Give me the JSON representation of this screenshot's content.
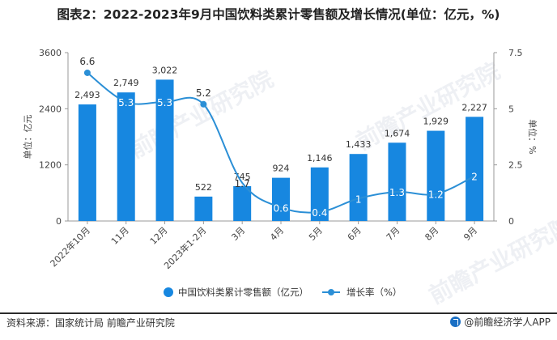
{
  "title": "图表2：2022-2023年9月中国饮料类累计零售额及增长情况(单位：亿元，%)",
  "source": "资料来源：国家统计局 前瞻产业研究院",
  "brand": "@前瞻经济学人APP",
  "watermark": "前瞻产业研究院",
  "colors": {
    "bar": "#1787e0",
    "line": "#2b8fd6",
    "axis": "#999999",
    "text": "#444444"
  },
  "chart_data": {
    "type": "bar+line",
    "categories": [
      "2022年10月",
      "11月",
      "12月",
      "2023年1-2月",
      "3月",
      "4月",
      "5月",
      "6月",
      "7月",
      "8月",
      "9月"
    ],
    "bars": {
      "name": "中国饮料类累计零售额（亿元）",
      "values": [
        2493,
        2749,
        3022,
        522,
        745,
        924,
        1146,
        1433,
        1674,
        1929,
        2227
      ],
      "labels": [
        "2,493",
        "2,749",
        "3,022",
        "522",
        "745",
        "924",
        "1,146",
        "1,433",
        "1,674",
        "1,929",
        "2,227"
      ]
    },
    "line": {
      "name": "增长率（%）",
      "values": [
        6.6,
        5.3,
        5.3,
        5.2,
        1.7,
        0.6,
        0.4,
        1,
        1.3,
        1.2,
        2
      ],
      "labels": [
        "6.6",
        "5.3",
        "5.3",
        "5.2",
        "1.7",
        "0.6",
        "0.4",
        "1",
        "1.3",
        "1.2",
        "2"
      ],
      "markers": [
        true,
        false,
        false,
        true,
        false,
        false,
        false,
        false,
        false,
        false,
        false
      ]
    },
    "y_left": {
      "label": "单位：亿元",
      "ticks": [
        0,
        1200,
        2400,
        3600
      ],
      "tick_labels": [
        "0",
        "1200",
        "2400",
        "3600"
      ],
      "range": [
        0,
        3600
      ]
    },
    "y_right": {
      "label": "单位：%",
      "ticks": [
        0,
        2.5,
        5,
        7.5
      ],
      "tick_labels": [
        "0",
        "2.5",
        "5",
        "7.5"
      ],
      "range": [
        0,
        7.5
      ]
    },
    "legend_position": "bottom",
    "grid": false
  }
}
